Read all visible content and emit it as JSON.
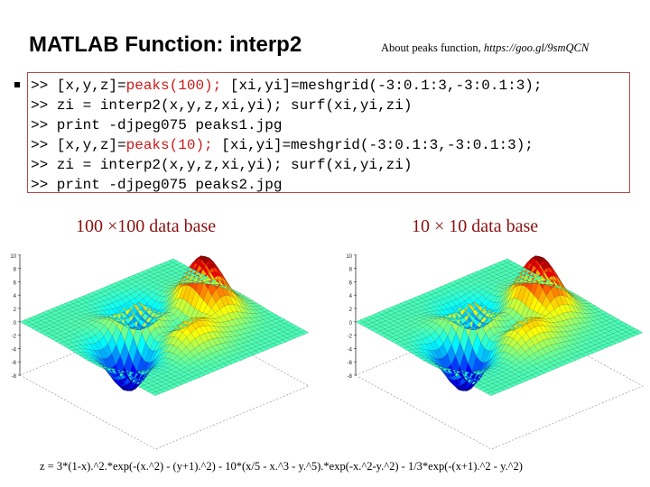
{
  "slide": {
    "title": "MATLAB Function: interp2",
    "about_prefix": "About peaks function, ",
    "about_link": "https://goo.gl/9smQCN"
  },
  "code": {
    "prompt": ">>",
    "lines": [
      {
        "pre": " [x,y,z]=",
        "kw": "peaks(100);",
        "post": " [xi,yi]=meshgrid(-3:0.1:3,-3:0.1:3);"
      },
      {
        "pre": " zi = interp2(x,y,z,xi,yi); surf(xi,yi,zi)",
        "kw": "",
        "post": ""
      },
      {
        "pre": " print -djpeg075 peaks1.jpg",
        "kw": "",
        "post": ""
      },
      {
        "pre": " [x,y,z]=",
        "kw": "peaks(10);",
        "post": " [xi,yi]=meshgrid(-3:0.1:3,-3:0.1:3);"
      },
      {
        "pre": " zi = interp2(x,y,z,xi,yi); surf(xi,yi,zi)",
        "kw": "",
        "post": ""
      },
      {
        "pre": " print -djpeg075 peaks2.jpg",
        "kw": "",
        "post": ""
      }
    ]
  },
  "captions": {
    "left": "100 ×100 data base",
    "right": "10 × 10 data base"
  },
  "plots": {
    "z_ticks": [
      "10",
      "8",
      "6",
      "4",
      "2",
      "0",
      "-2",
      "-4",
      "-6",
      "-8"
    ]
  },
  "formula": "z = 3*(1-x).^2.*exp(-(x.^2) - (y+1).^2) - 10*(x/5 - x.^3 - y.^5).*exp(-x.^2-y.^2) - 1/3*exp(-(x+1).^2 - y.^2)",
  "colors": {
    "accent_red": "#cc1a1a",
    "caption_red": "#8b1010",
    "box_border": "#b04a4a"
  }
}
